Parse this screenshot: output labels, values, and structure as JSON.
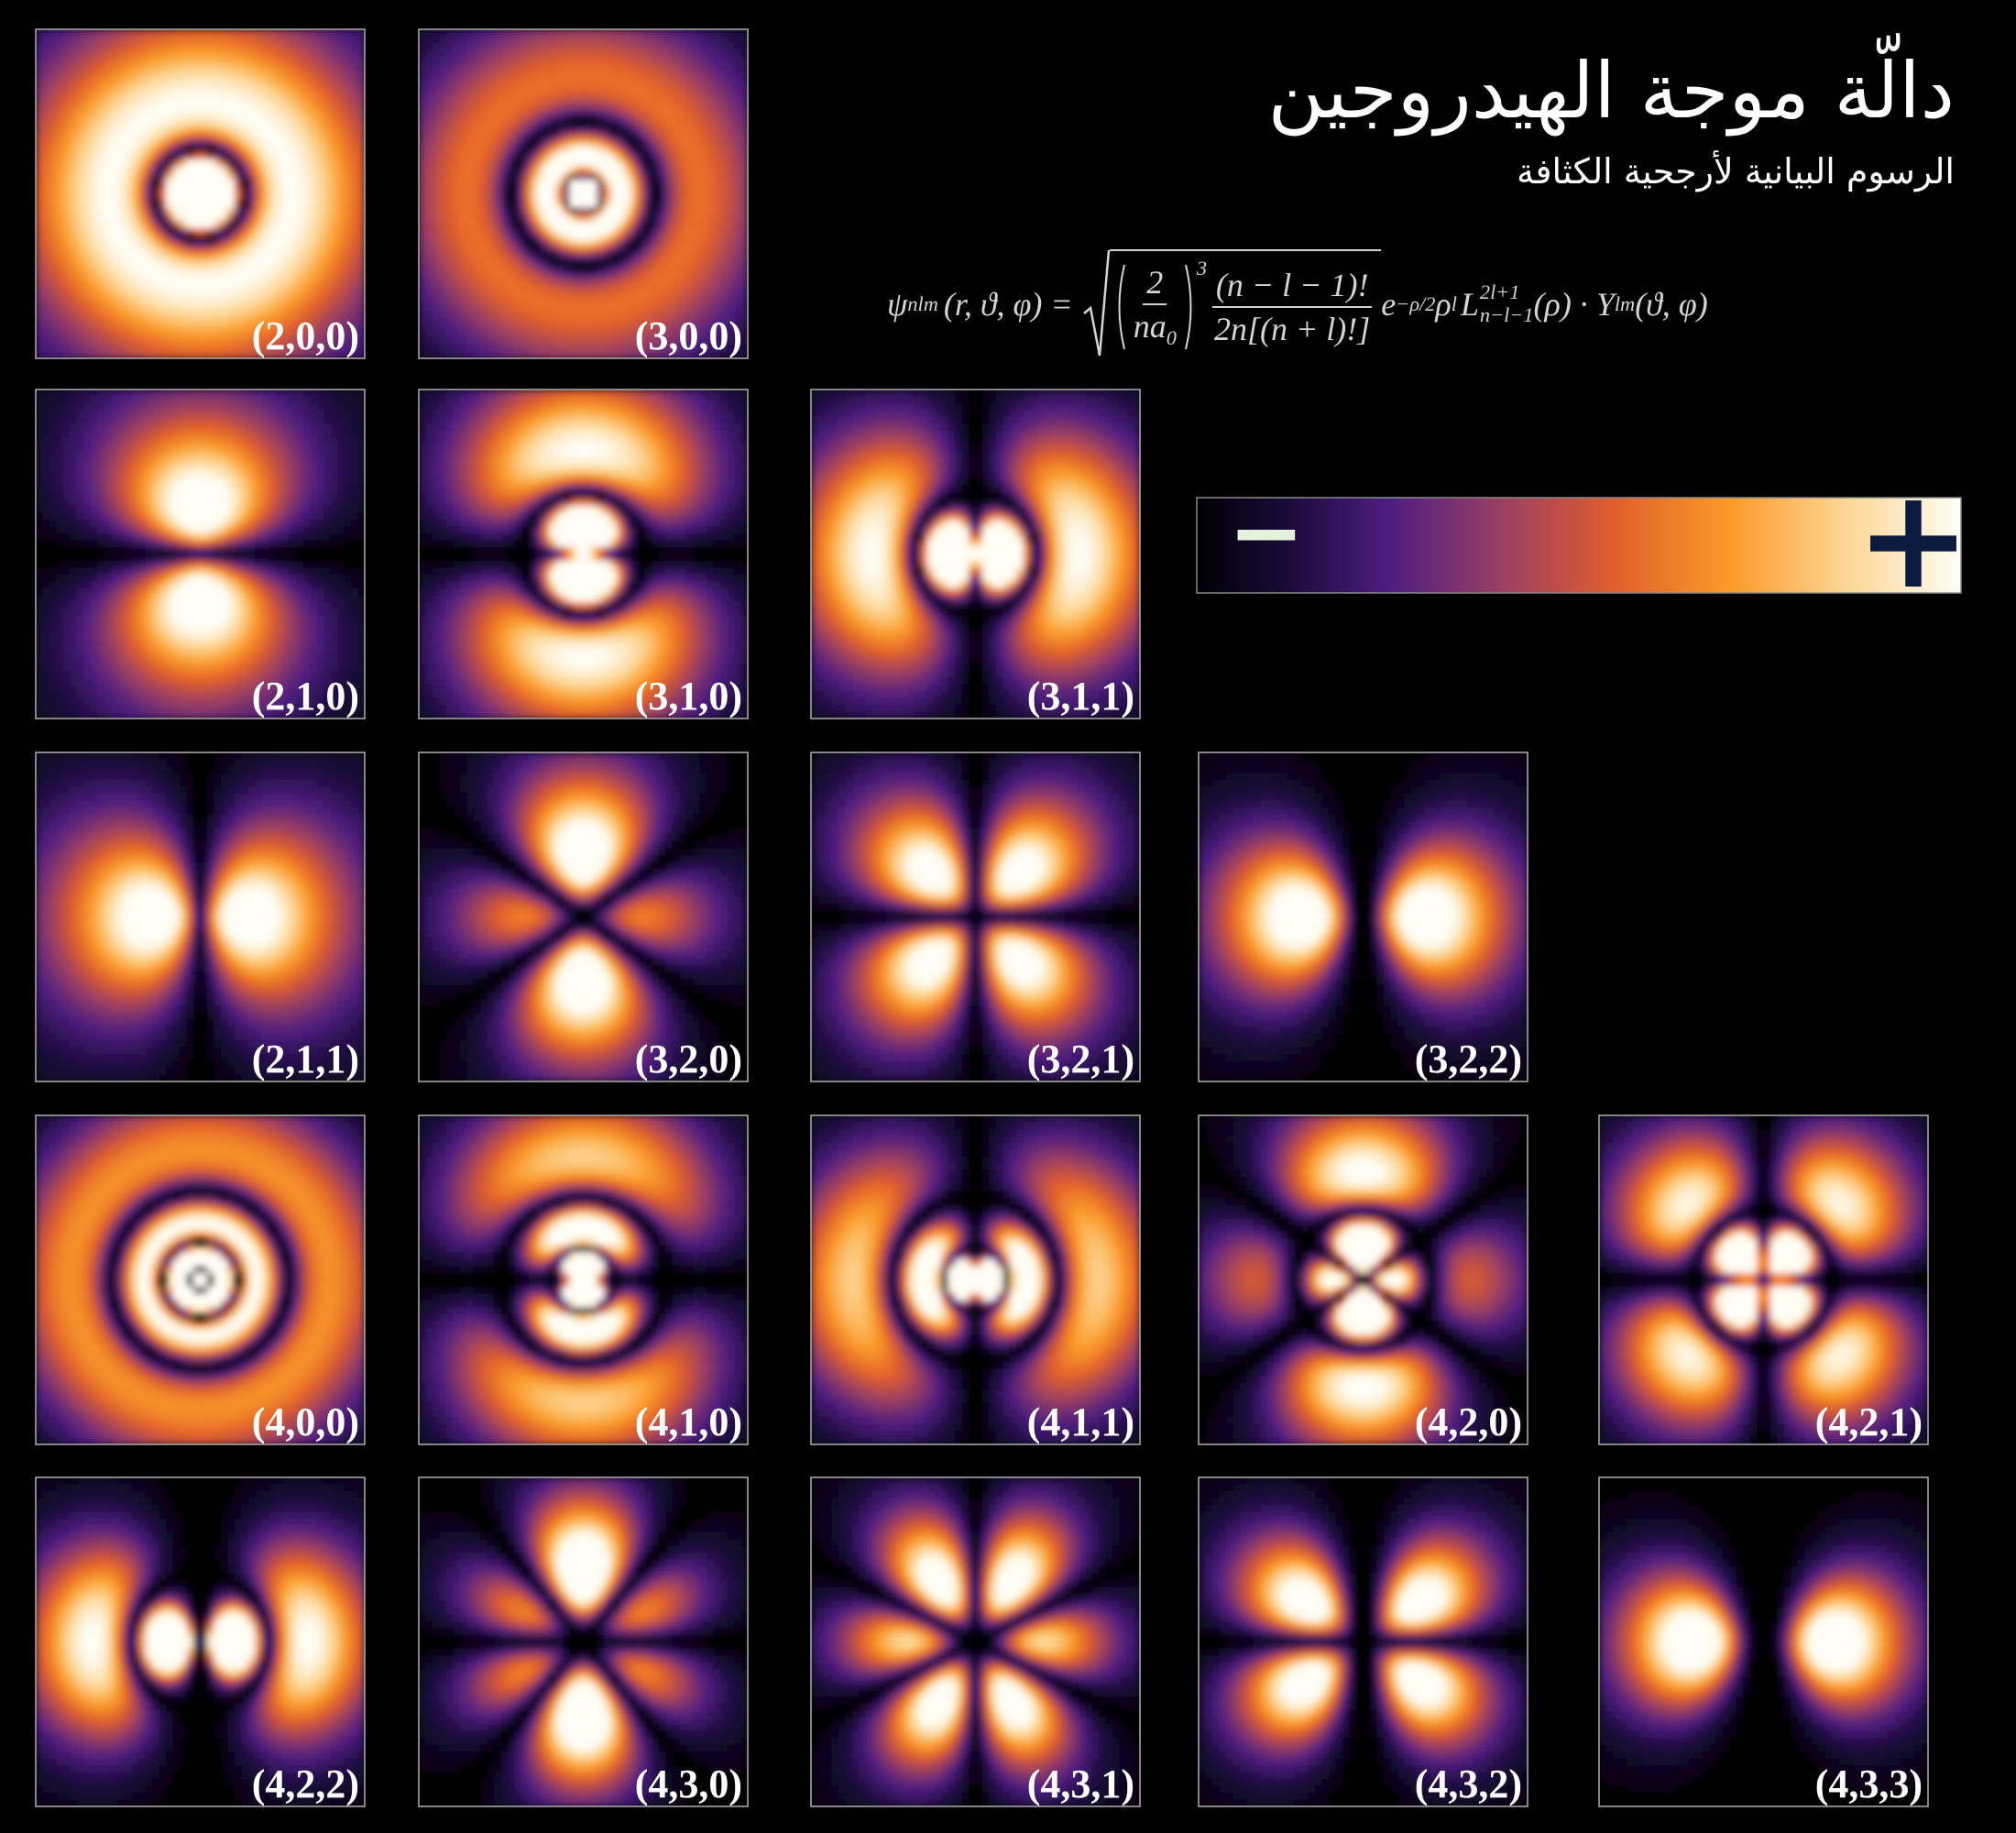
{
  "header": {
    "title": "دالّة موجة الهيدروجين",
    "subtitle": "الرسوم البيانية لأرجحية الكثافة"
  },
  "formula": {
    "psi": "ψ",
    "psi_sub": "nlm",
    "psi_args": "(r, ϑ, φ) =",
    "frac1_num": "2",
    "frac1_den": "na",
    "frac1_den_sub": "0",
    "power": "3",
    "frac2_num": "(n − l − 1)!",
    "frac2_den": "2n[(n + l)!]",
    "e": "e",
    "e_sup": "−ρ/2",
    "rho": "ρ",
    "rho_sup": "l",
    "L": "L",
    "L_sup": "2l+1",
    "L_sub": "n−l−1",
    "rest": "(ρ) · Y",
    "Y_sub": "lm",
    "Y_args": "(ϑ, φ)"
  },
  "colorbar": {
    "minus": "−",
    "plus": "+"
  },
  "rows": [
    [
      {
        "label": "(2,0,0)"
      },
      {
        "label": "(3,0,0)"
      }
    ],
    [
      {
        "label": "(2,1,0)"
      },
      {
        "label": "(3,1,0)"
      },
      {
        "label": "(3,1,1)"
      }
    ],
    [
      {
        "label": "(2,1,1)"
      },
      {
        "label": "(3,2,0)"
      },
      {
        "label": "(3,2,1)"
      },
      {
        "label": "(3,2,2)"
      }
    ],
    [
      {
        "label": "(4,0,0)"
      },
      {
        "label": "(4,1,0)"
      },
      {
        "label": "(4,1,1)"
      },
      {
        "label": "(4,2,0)"
      },
      {
        "label": "(4,2,1)"
      }
    ],
    [
      {
        "label": "(4,2,2)"
      },
      {
        "label": "(4,3,0)"
      },
      {
        "label": "(4,3,1)"
      },
      {
        "label": "(4,3,2)"
      },
      {
        "label": "(4,3,3)"
      }
    ]
  ]
}
